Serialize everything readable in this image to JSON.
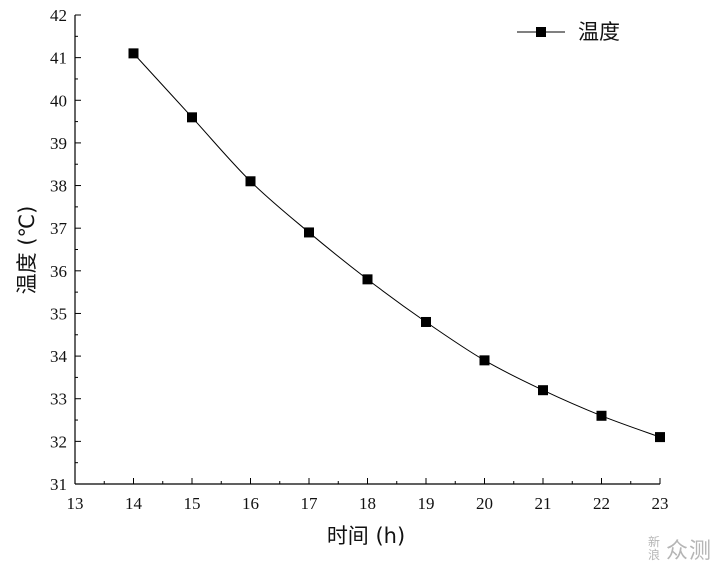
{
  "chart_data": {
    "type": "line",
    "x": [
      14,
      15,
      16,
      17,
      18,
      19,
      20,
      21,
      22,
      23
    ],
    "series": [
      {
        "name": "温度",
        "values": [
          41.1,
          39.6,
          38.1,
          36.9,
          35.8,
          34.8,
          33.9,
          33.2,
          32.6,
          32.1
        ]
      }
    ],
    "xlabel": "时间 (h)",
    "ylabel": "温度 (℃)",
    "xlim": [
      13,
      23
    ],
    "ylim": [
      31,
      42
    ],
    "xticks": [
      "13",
      "14",
      "15",
      "16",
      "17",
      "18",
      "19",
      "20",
      "21",
      "22",
      "23"
    ],
    "yticks": [
      "31",
      "32",
      "33",
      "34",
      "35",
      "36",
      "37",
      "38",
      "39",
      "40",
      "41",
      "42"
    ],
    "marker": "square",
    "grid": false,
    "legend_position": "top-right",
    "colors": {
      "line": "#000000",
      "marker": "#000000",
      "axis": "#000000"
    }
  },
  "watermark": {
    "small": "新浪",
    "big": "众测"
  }
}
